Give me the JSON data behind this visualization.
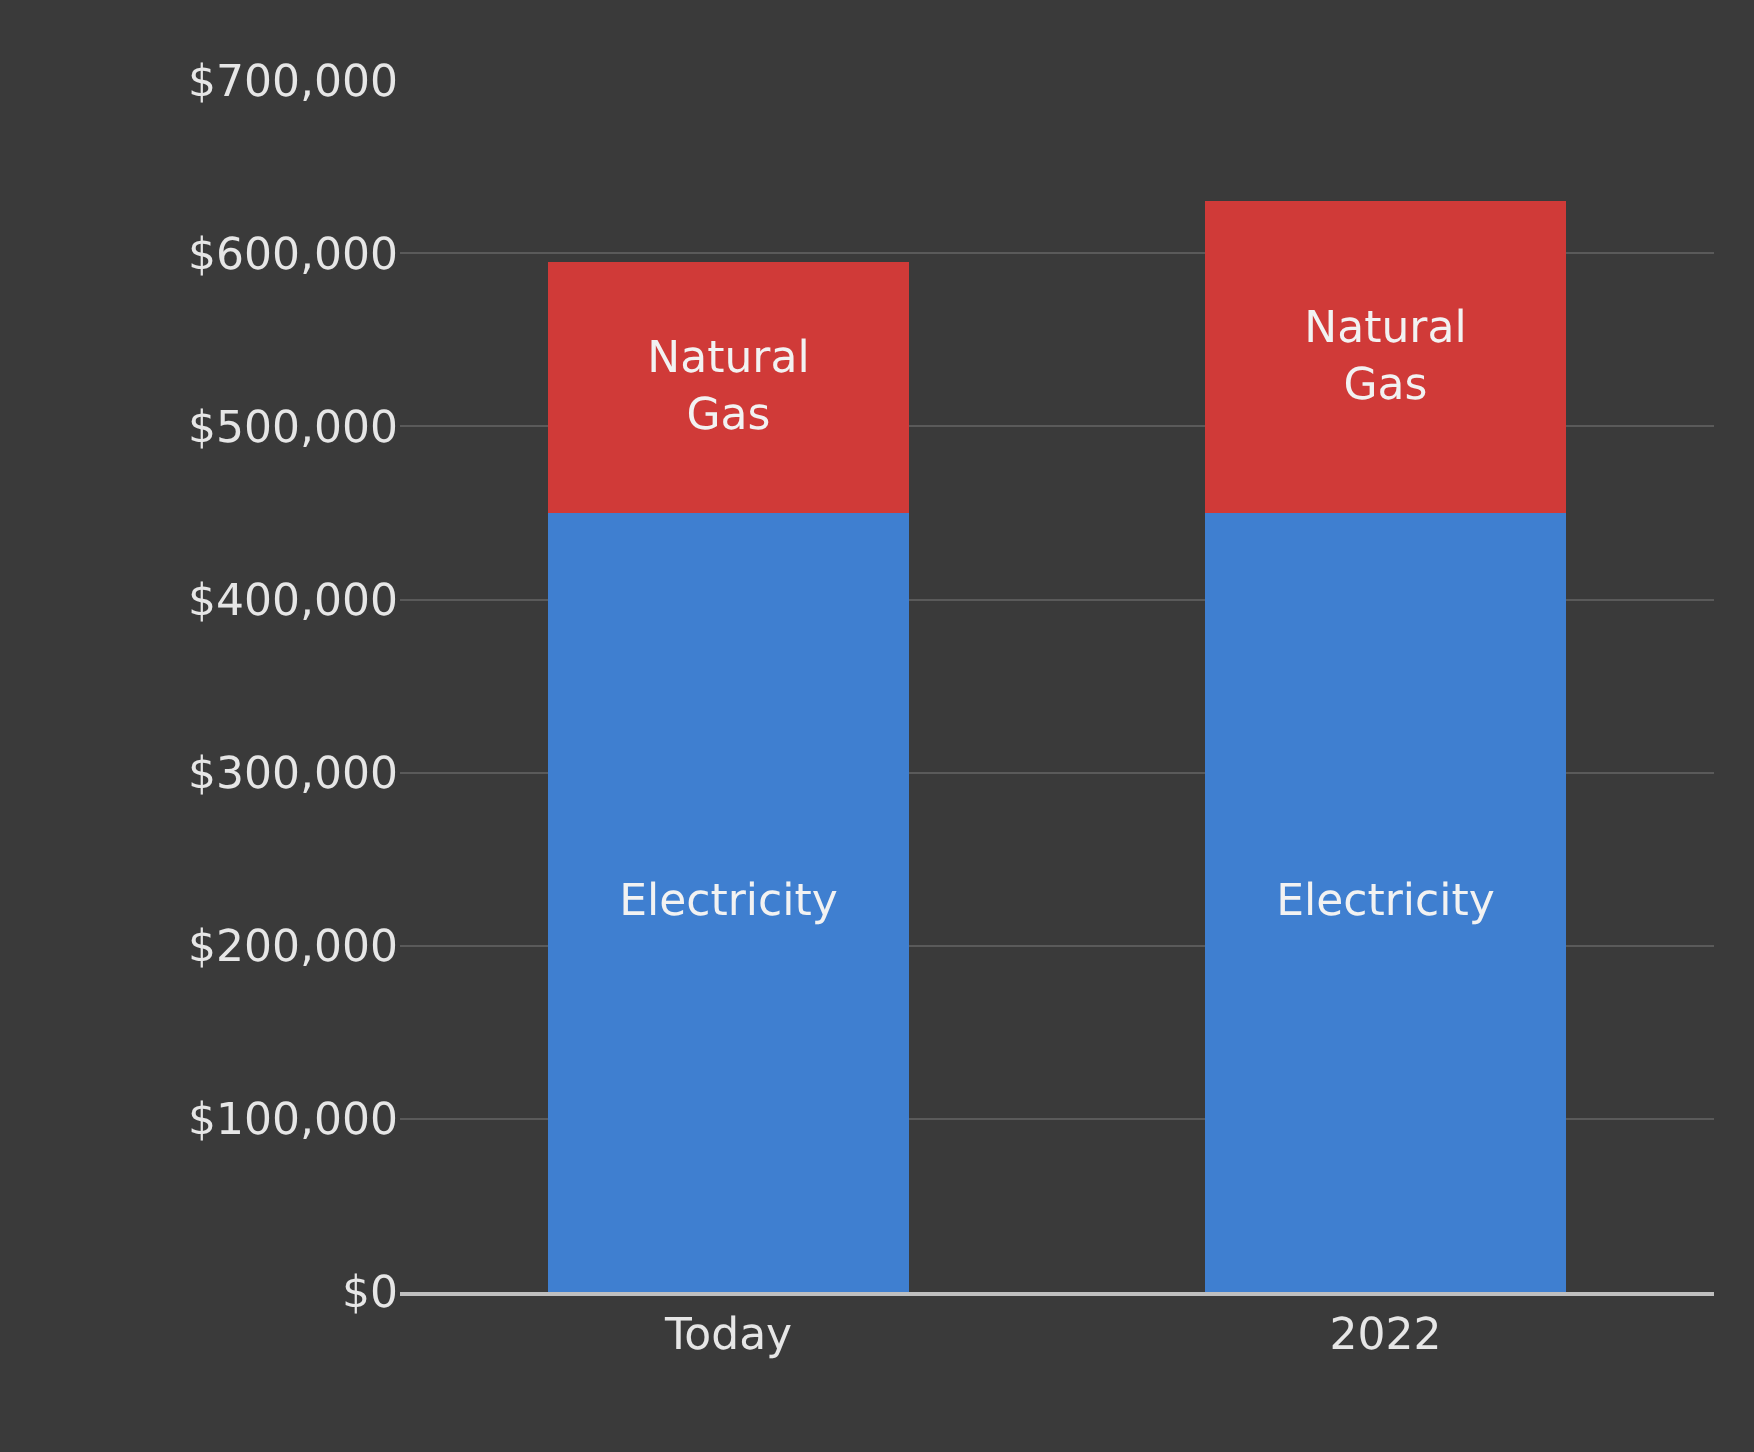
{
  "chart_data": {
    "type": "bar",
    "stacked": true,
    "categories": [
      "Today",
      "2022"
    ],
    "series": [
      {
        "name": "Electricity",
        "color": "#3f7fd0",
        "values": [
          450000,
          450000
        ]
      },
      {
        "name": "Natural Gas",
        "color": "#d03a38",
        "values": [
          145000,
          180000
        ]
      }
    ],
    "ylim": [
      0,
      700000
    ],
    "yticks": [
      {
        "value": 0,
        "label": "$0"
      },
      {
        "value": 100000,
        "label": "$100,000"
      },
      {
        "value": 200000,
        "label": "$200,000"
      },
      {
        "value": 300000,
        "label": "$300,000"
      },
      {
        "value": 400000,
        "label": "$400,000"
      },
      {
        "value": 500000,
        "label": "$500,000"
      },
      {
        "value": 600000,
        "label": "$600,000"
      },
      {
        "value": 700000,
        "label": "$700,000"
      }
    ],
    "grid": "y",
    "legend": false
  }
}
